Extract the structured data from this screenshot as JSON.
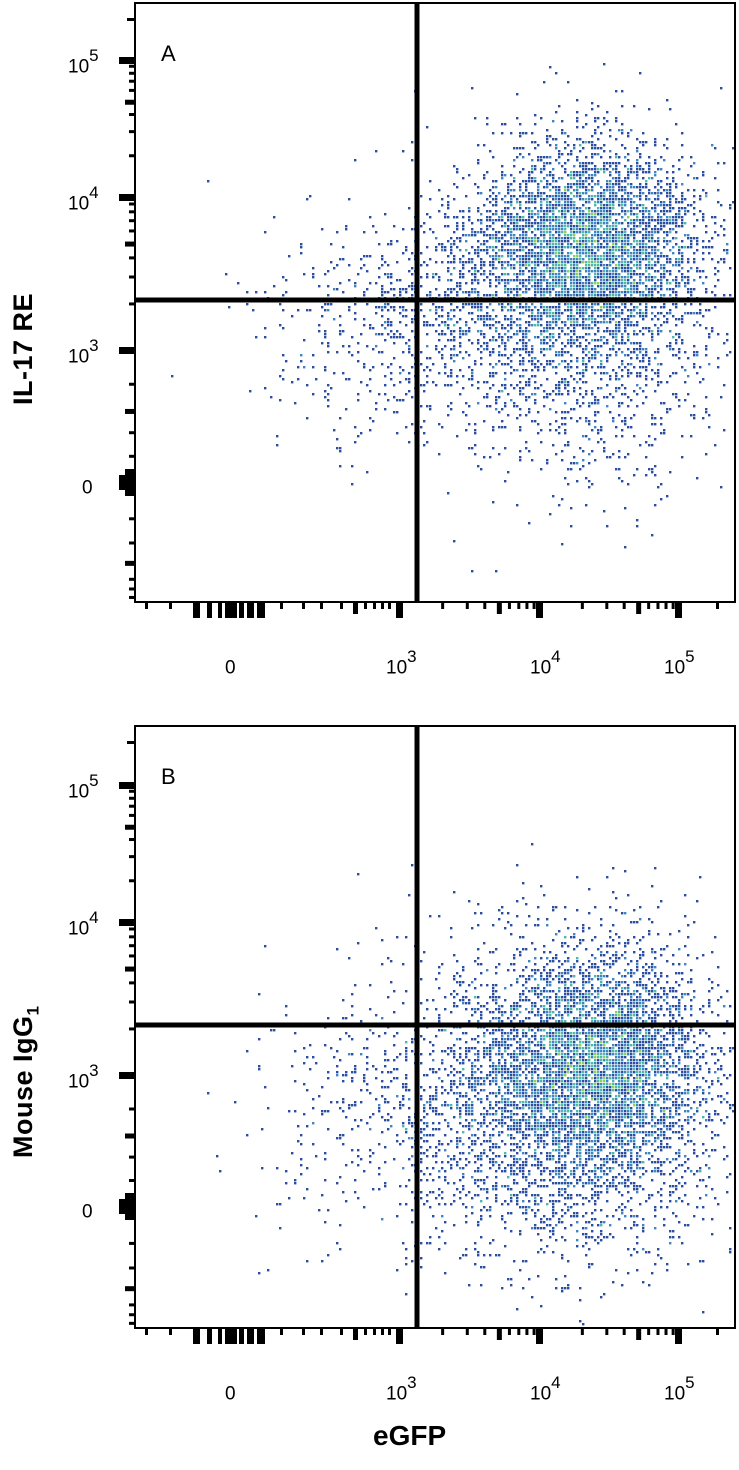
{
  "figure": {
    "x_axis_label": "eGFP",
    "density_colors": [
      "#2b4ea0",
      "#3f86c0",
      "#4fb8a8",
      "#8ccf5a",
      "#f0e030",
      "#f5a020",
      "#e83020"
    ],
    "gate_line_color": "#000000"
  },
  "panels": [
    {
      "letter": "A",
      "y_axis_label": "IL-17 RE",
      "y_axis_label_sub": "",
      "x_ticks": [
        {
          "base": "0",
          "exp": ""
        },
        {
          "base": "10",
          "exp": "3"
        },
        {
          "base": "10",
          "exp": "4"
        },
        {
          "base": "10",
          "exp": "5"
        }
      ],
      "y_ticks": [
        {
          "base": "10",
          "exp": "5"
        },
        {
          "base": "10",
          "exp": "4"
        },
        {
          "base": "10",
          "exp": "3"
        },
        {
          "base": "0",
          "exp": ""
        }
      ]
    },
    {
      "letter": "B",
      "y_axis_label": "Mouse IgG",
      "y_axis_label_sub": "1",
      "x_ticks": [
        {
          "base": "0",
          "exp": ""
        },
        {
          "base": "10",
          "exp": "3"
        },
        {
          "base": "10",
          "exp": "4"
        },
        {
          "base": "10",
          "exp": "5"
        }
      ],
      "y_ticks": [
        {
          "base": "10",
          "exp": "5"
        },
        {
          "base": "10",
          "exp": "4"
        },
        {
          "base": "10",
          "exp": "3"
        },
        {
          "base": "0",
          "exp": ""
        }
      ]
    }
  ],
  "chart_data": [
    {
      "type": "scatter",
      "subtype": "flow-cytometry pseudocolor density plot with quadrant gates",
      "title": "A",
      "xlabel": "eGFP",
      "ylabel": "IL-17 RE",
      "x_scale": "biexponential",
      "y_scale": "biexponential",
      "x_tick_labels": [
        "0",
        "10^3",
        "10^4",
        "10^5"
      ],
      "y_tick_labels": [
        "0",
        "10^3",
        "10^4",
        "10^5"
      ],
      "xlim": [
        -300,
        250000
      ],
      "ylim": [
        -400,
        250000
      ],
      "quadrant_gate": {
        "x": 1300,
        "y": 2000
      },
      "population_center": {
        "x": 25000,
        "y": 4500
      },
      "quadrants": {
        "upper_right": "majority (dense, eGFP+ IL-17 RE+)",
        "lower_right": "moderate",
        "upper_left": "sparse",
        "lower_left": "sparse"
      },
      "clusters": [
        {
          "cx": 590,
          "cy": 245,
          "sx": 55,
          "sy": 50,
          "n": 3600
        },
        {
          "cx": 560,
          "cy": 300,
          "sx": 80,
          "sy": 70,
          "n": 1500
        },
        {
          "cx": 450,
          "cy": 300,
          "sx": 75,
          "sy": 45,
          "n": 600
        },
        {
          "cx": 600,
          "cy": 390,
          "sx": 70,
          "sy": 60,
          "n": 420
        },
        {
          "cx": 360,
          "cy": 360,
          "sx": 60,
          "sy": 55,
          "n": 170
        }
      ],
      "grid": false,
      "legend": "none"
    },
    {
      "type": "scatter",
      "subtype": "flow-cytometry pseudocolor density plot with quadrant gates",
      "title": "B",
      "xlabel": "eGFP",
      "ylabel": "Mouse IgG1",
      "x_scale": "biexponential",
      "y_scale": "biexponential",
      "x_tick_labels": [
        "0",
        "10^3",
        "10^4",
        "10^5"
      ],
      "y_tick_labels": [
        "0",
        "10^3",
        "10^4",
        "10^5"
      ],
      "xlim": [
        -300,
        250000
      ],
      "ylim": [
        -400,
        250000
      ],
      "quadrant_gate": {
        "x": 1300,
        "y": 2000
      },
      "population_center": {
        "x": 28000,
        "y": 900
      },
      "quadrants": {
        "upper_right": "small fraction",
        "lower_right": "majority (dense, eGFP+ isotype-)",
        "upper_left": "nearly empty",
        "lower_left": "sparse"
      },
      "clusters": [
        {
          "cx": 600,
          "cy": 345,
          "sx": 55,
          "sy": 55,
          "n": 3600
        },
        {
          "cx": 560,
          "cy": 370,
          "sx": 80,
          "sy": 80,
          "n": 1700
        },
        {
          "cx": 470,
          "cy": 380,
          "sx": 75,
          "sy": 65,
          "n": 700
        },
        {
          "cx": 590,
          "cy": 450,
          "sx": 70,
          "sy": 55,
          "n": 450
        },
        {
          "cx": 370,
          "cy": 400,
          "sx": 60,
          "sy": 70,
          "n": 180
        },
        {
          "cx": 600,
          "cy": 260,
          "sx": 55,
          "sy": 40,
          "n": 160
        }
      ],
      "grid": false,
      "legend": "none"
    }
  ]
}
